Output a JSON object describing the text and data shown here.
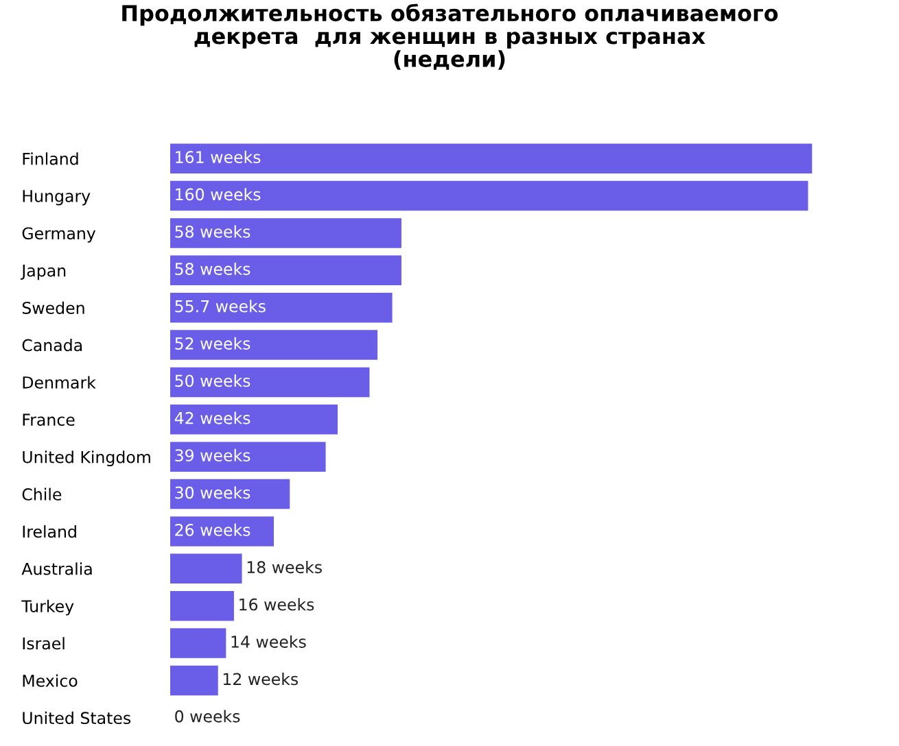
{
  "chart_data": {
    "type": "bar",
    "orientation": "horizontal",
    "title": "Продолжительность обязательного оплачиваемого\nдекрета  для женщин в разных странах\n(недели)",
    "categories": [
      "Finland",
      "Hungary",
      "Germany",
      "Japan",
      "Sweden",
      "Canada",
      "Denmark",
      "France",
      "United Kingdom",
      "Chile",
      "Ireland",
      "Australia",
      "Turkey",
      "Israel",
      "Mexico",
      "United States"
    ],
    "values": [
      161,
      160,
      58,
      58,
      55.7,
      52,
      50,
      42,
      39,
      30,
      26,
      18,
      16,
      14,
      12,
      0
    ],
    "value_labels": [
      "161 weeks",
      "160 weeks",
      "58 weeks",
      "58 weeks",
      "55.7 weeks",
      "52 weeks",
      "50 weeks",
      "42 weeks",
      "39 weeks",
      "30 weeks",
      "26 weeks",
      "18 weeks",
      "16 weeks",
      "14 weeks",
      "12 weeks",
      "0 weeks"
    ],
    "color": "#6a5de8",
    "grid": false,
    "legend": false
  }
}
